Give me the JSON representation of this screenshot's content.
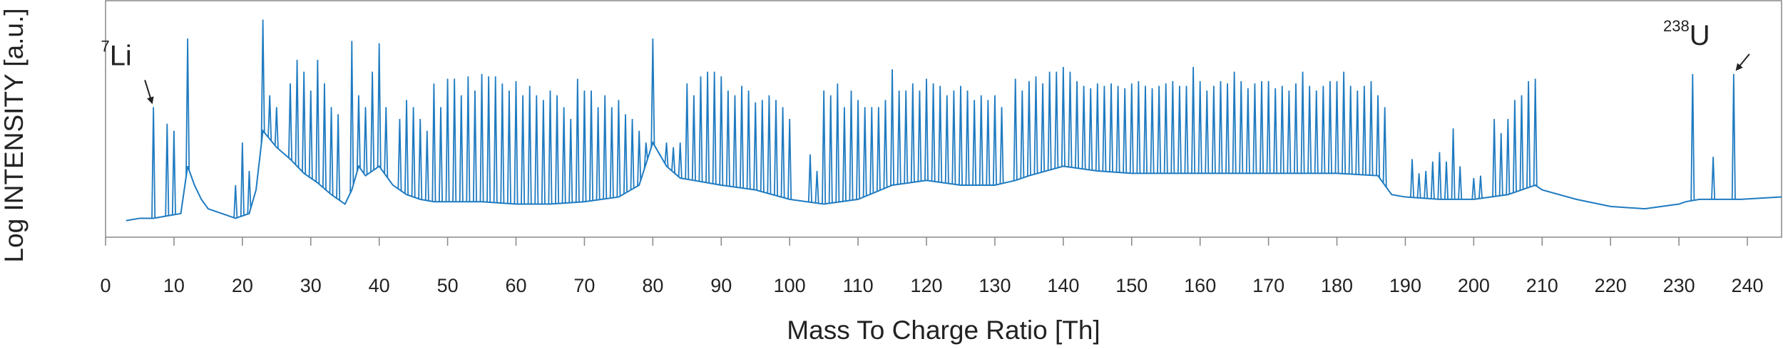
{
  "chart_data": {
    "type": "spectrum",
    "x_label": "Mass To Charge Ratio [Th]",
    "y_label": "Log INTENSITY [a.u.]",
    "color": "#1f7bc1",
    "xlim": [
      0,
      245
    ],
    "ylim": [
      0,
      100
    ],
    "xticks": [
      0,
      10,
      20,
      30,
      40,
      50,
      60,
      70,
      80,
      90,
      100,
      110,
      120,
      130,
      140,
      150,
      160,
      170,
      180,
      190,
      200,
      210,
      220,
      230,
      240
    ],
    "baseline_x": [
      3,
      5,
      7,
      9,
      11,
      12,
      13,
      14,
      15,
      17,
      19,
      21,
      22,
      23,
      25,
      27,
      29,
      31,
      33,
      35,
      36,
      37,
      38,
      40,
      42,
      44,
      46,
      48,
      50,
      55,
      60,
      65,
      70,
      75,
      78,
      80,
      82,
      84,
      86,
      88,
      90,
      95,
      100,
      105,
      110,
      115,
      120,
      125,
      130,
      133,
      135,
      140,
      145,
      150,
      160,
      170,
      180,
      186,
      188,
      190,
      195,
      200,
      205,
      209,
      210,
      215,
      220,
      225,
      230,
      231,
      233,
      236,
      239,
      245
    ],
    "baseline": [
      7,
      8,
      8,
      9,
      10,
      30,
      22,
      16,
      12,
      10,
      8,
      10,
      20,
      45,
      38,
      33,
      27,
      23,
      18,
      14,
      20,
      30,
      26,
      30,
      22,
      18,
      16,
      15,
      15,
      15,
      14,
      14,
      15,
      17,
      22,
      40,
      30,
      25,
      24,
      23,
      22,
      20,
      16,
      14,
      16,
      22,
      24,
      22,
      22,
      24,
      26,
      30,
      28,
      27,
      27,
      27,
      27,
      26,
      18,
      17,
      16,
      16,
      18,
      22,
      20,
      16,
      13,
      12,
      14,
      15,
      16,
      16,
      16,
      17
    ],
    "peaks_x": [
      7,
      9,
      10,
      12,
      19,
      20,
      21,
      23,
      24,
      25,
      27,
      28,
      29,
      30,
      31,
      32,
      33,
      34,
      36,
      37,
      38,
      39,
      40,
      41,
      43,
      44,
      45,
      46,
      47,
      48,
      49,
      50,
      51,
      52,
      53,
      54,
      55,
      56,
      57,
      58,
      59,
      60,
      61,
      62,
      63,
      64,
      65,
      66,
      67,
      68,
      69,
      70,
      71,
      72,
      73,
      74,
      75,
      76,
      77,
      78,
      79,
      80,
      81,
      82,
      83,
      84,
      85,
      86,
      87,
      88,
      89,
      90,
      91,
      92,
      93,
      94,
      95,
      96,
      97,
      98,
      99,
      100,
      103,
      104,
      105,
      106,
      107,
      108,
      109,
      110,
      111,
      112,
      113,
      114,
      115,
      116,
      117,
      118,
      119,
      120,
      121,
      122,
      123,
      124,
      125,
      126,
      127,
      128,
      129,
      130,
      131,
      133,
      134,
      135,
      136,
      137,
      138,
      139,
      140,
      141,
      142,
      143,
      144,
      145,
      146,
      147,
      148,
      149,
      150,
      151,
      152,
      153,
      154,
      155,
      156,
      157,
      158,
      159,
      160,
      161,
      162,
      163,
      164,
      165,
      166,
      167,
      168,
      169,
      170,
      171,
      172,
      173,
      174,
      175,
      176,
      177,
      178,
      179,
      180,
      181,
      182,
      183,
      184,
      185,
      186,
      187,
      191,
      192,
      193,
      194,
      195,
      196,
      197,
      198,
      200,
      201,
      203,
      204,
      205,
      206,
      207,
      208,
      209,
      232,
      235,
      238
    ],
    "peaks": [
      55,
      48,
      45,
      84,
      22,
      40,
      28,
      92,
      60,
      55,
      65,
      75,
      70,
      62,
      75,
      65,
      55,
      52,
      83,
      60,
      55,
      70,
      82,
      55,
      50,
      58,
      55,
      50,
      45,
      65,
      55,
      67,
      67,
      60,
      68,
      62,
      69,
      68,
      68,
      65,
      62,
      66,
      60,
      64,
      60,
      58,
      62,
      60,
      55,
      50,
      67,
      62,
      62,
      55,
      60,
      55,
      58,
      52,
      50,
      45,
      40,
      84,
      35,
      40,
      38,
      40,
      65,
      60,
      68,
      70,
      70,
      68,
      62,
      60,
      64,
      62,
      57,
      58,
      60,
      58,
      55,
      50,
      35,
      28,
      62,
      60,
      65,
      55,
      62,
      58,
      55,
      55,
      55,
      58,
      71,
      62,
      62,
      65,
      62,
      67,
      65,
      64,
      60,
      62,
      64,
      62,
      58,
      60,
      58,
      60,
      55,
      67,
      62,
      66,
      68,
      65,
      70,
      70,
      72,
      70,
      66,
      64,
      63,
      65,
      64,
      65,
      64,
      63,
      65,
      66,
      64,
      63,
      64,
      65,
      66,
      64,
      64,
      72,
      66,
      62,
      64,
      66,
      65,
      70,
      66,
      63,
      65,
      66,
      66,
      63,
      64,
      62,
      65,
      70,
      64,
      62,
      64,
      66,
      66,
      70,
      64,
      62,
      64,
      66,
      60,
      55,
      33,
      27,
      28,
      32,
      36,
      32,
      46,
      30,
      25,
      26,
      50,
      44,
      50,
      58,
      60,
      66,
      67,
      69,
      34,
      69
    ],
    "annotations": [
      {
        "sup": "7",
        "text": "Li",
        "x": 7,
        "y": 55
      },
      {
        "sup": "238",
        "text": "U",
        "x": 238,
        "y": 69
      }
    ]
  }
}
